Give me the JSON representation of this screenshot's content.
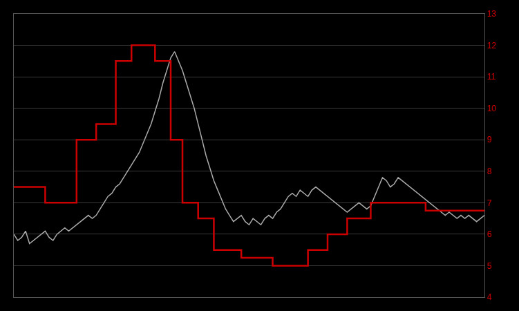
{
  "chart_data": {
    "type": "line",
    "series": [
      {
        "color": "#aaaaaa",
        "x": [
          0,
          1,
          2,
          3,
          4,
          5,
          6,
          7,
          8,
          9,
          10,
          11,
          12,
          13,
          14,
          15,
          16,
          17,
          18,
          19,
          20,
          21,
          22,
          23,
          24,
          25,
          26,
          27,
          28,
          29,
          30,
          31,
          32,
          33,
          34,
          35,
          36,
          37,
          38,
          39,
          40,
          41,
          42,
          43,
          44,
          45,
          46,
          47,
          48,
          49,
          50,
          51,
          52,
          53,
          54,
          55,
          56,
          57,
          58,
          59,
          60,
          61,
          62,
          63,
          64,
          65,
          66,
          67,
          68,
          69,
          70,
          71,
          72,
          73,
          74,
          75,
          76,
          77,
          78,
          79,
          80,
          81,
          82,
          83,
          84,
          85,
          86,
          87,
          88,
          89,
          90,
          91,
          92,
          93,
          94,
          95,
          96,
          97,
          98,
          99,
          100,
          101,
          102,
          103,
          104,
          105,
          106,
          107,
          108,
          109,
          110,
          111,
          112,
          113,
          114,
          115,
          116,
          117,
          118,
          119,
          120
        ],
        "values": [
          6.0,
          5.8,
          5.9,
          6.1,
          5.7,
          5.8,
          5.9,
          6.0,
          6.1,
          5.9,
          5.8,
          6.0,
          6.1,
          6.2,
          6.1,
          6.2,
          6.3,
          6.4,
          6.5,
          6.6,
          6.5,
          6.6,
          6.8,
          7.0,
          7.2,
          7.3,
          7.5,
          7.6,
          7.8,
          8.0,
          8.2,
          8.4,
          8.6,
          8.9,
          9.2,
          9.5,
          9.9,
          10.3,
          10.8,
          11.2,
          11.6,
          11.8,
          11.5,
          11.2,
          10.8,
          10.4,
          10.0,
          9.5,
          9.0,
          8.5,
          8.1,
          7.7,
          7.4,
          7.1,
          6.8,
          6.6,
          6.4,
          6.5,
          6.6,
          6.4,
          6.3,
          6.5,
          6.4,
          6.3,
          6.5,
          6.6,
          6.5,
          6.7,
          6.8,
          7.0,
          7.2,
          7.3,
          7.2,
          7.4,
          7.3,
          7.2,
          7.4,
          7.5,
          7.4,
          7.3,
          7.2,
          7.1,
          7.0,
          6.9,
          6.8,
          6.7,
          6.8,
          6.9,
          7.0,
          6.9,
          6.8,
          6.9,
          7.2,
          7.5,
          7.8,
          7.7,
          7.5,
          7.6,
          7.8,
          7.7,
          7.6,
          7.5,
          7.4,
          7.3,
          7.2,
          7.1,
          7.0,
          6.9,
          6.8,
          6.7,
          6.6,
          6.7,
          6.6,
          6.5,
          6.6,
          6.5,
          6.6,
          6.5,
          6.4,
          6.5,
          6.6
        ]
      },
      {
        "color": "#cc0000",
        "line_style": "step",
        "x": [
          0,
          8,
          16,
          21,
          26,
          30,
          36,
          40,
          43,
          47,
          51,
          58,
          66,
          75,
          80,
          85,
          91,
          105,
          120
        ],
        "values": [
          7.5,
          7.0,
          9.0,
          9.5,
          11.5,
          12.0,
          11.5,
          9.0,
          7.0,
          6.5,
          5.5,
          5.25,
          5.0,
          5.5,
          6.0,
          6.5,
          7.0,
          6.75,
          6.75
        ]
      }
    ],
    "xlim": [
      0,
      120
    ],
    "ylim": [
      4,
      13
    ],
    "yticks": [
      4,
      5,
      6,
      7,
      8,
      9,
      10,
      11,
      12,
      13
    ],
    "grid": true,
    "tick_labels": "y"
  }
}
